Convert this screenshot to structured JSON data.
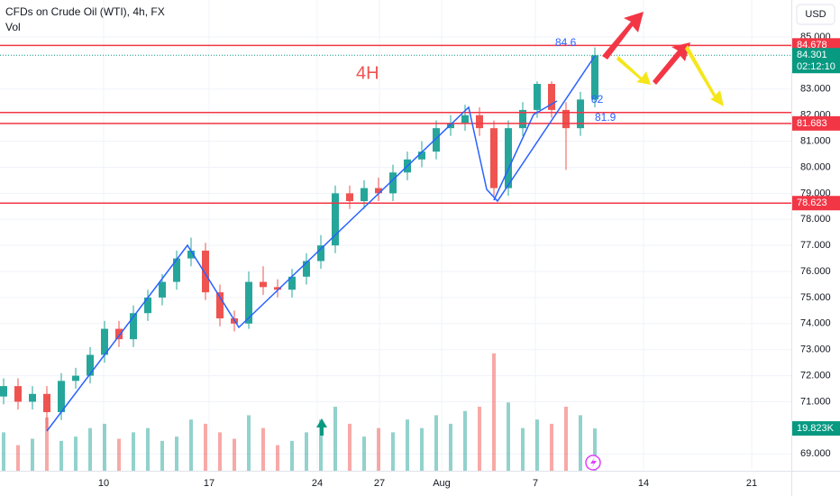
{
  "chart_data": {
    "type": "candlestick",
    "title": "CFDs on Crude Oil (WTI), 4h, FX",
    "volume_title": "Vol",
    "currency": "USD",
    "up_color": "#26a69a",
    "down_color": "#ef5350",
    "xlim": [
      0,
      219.5
    ],
    "xticks": [
      {
        "value": 28.75,
        "label": "10"
      },
      {
        "value": 58,
        "label": "17"
      },
      {
        "value": 88,
        "label": "24"
      },
      {
        "value": 105.25,
        "label": "27"
      },
      {
        "value": 122.5,
        "label": "Aug"
      },
      {
        "value": 148.5,
        "label": "7"
      },
      {
        "value": 178.5,
        "label": "14"
      },
      {
        "value": 208.5,
        "label": "21"
      }
    ],
    "ylim": [
      68.42,
      86.42
    ],
    "yticks": [
      {
        "value": 85,
        "label": "85.000"
      },
      {
        "value": 83,
        "label": "83.000"
      },
      {
        "value": 82,
        "label": "82.000"
      },
      {
        "value": 81,
        "label": "81.000"
      },
      {
        "value": 80,
        "label": "80.000"
      },
      {
        "value": 79,
        "label": "79.000"
      },
      {
        "value": 78,
        "label": "78.000"
      },
      {
        "value": 77,
        "label": "77.000"
      },
      {
        "value": 76,
        "label": "76.000"
      },
      {
        "value": 75,
        "label": "75.000"
      },
      {
        "value": 74,
        "label": "74.000"
      },
      {
        "value": 73,
        "label": "73.000"
      },
      {
        "value": 72,
        "label": "72.000"
      },
      {
        "value": 71,
        "label": "71.000"
      },
      {
        "value": 69,
        "label": "69.000"
      }
    ],
    "x": [
      1,
      5,
      9,
      13,
      17,
      21,
      25,
      29,
      33,
      37,
      41,
      45,
      49,
      53,
      57,
      61,
      65,
      69,
      73,
      77,
      81,
      85,
      89,
      93,
      97,
      101,
      105,
      109,
      113,
      117,
      121,
      125,
      129,
      133,
      137,
      141,
      145,
      149,
      153,
      157,
      161,
      165
    ],
    "open": [
      71.2,
      71.6,
      71.0,
      71.3,
      70.6,
      71.8,
      72.0,
      72.8,
      73.8,
      73.4,
      74.4,
      75.0,
      75.6,
      76.5,
      76.8,
      75.2,
      74.2,
      74.0,
      75.6,
      75.4,
      75.3,
      75.8,
      76.4,
      77.0,
      79.0,
      78.7,
      79.2,
      79.0,
      79.8,
      80.3,
      80.6,
      81.5,
      81.7,
      82.0,
      81.5,
      79.2,
      81.5,
      82.2,
      83.2,
      82.2,
      81.5,
      82.6
    ],
    "high": [
      71.9,
      71.9,
      71.6,
      71.6,
      72.1,
      72.3,
      73.1,
      74.1,
      74.1,
      74.7,
      75.3,
      75.9,
      76.8,
      77.3,
      77.1,
      75.5,
      74.5,
      76.0,
      76.2,
      75.7,
      76.1,
      76.7,
      77.4,
      79.3,
      79.3,
      79.5,
      79.6,
      80.1,
      80.6,
      81.0,
      81.8,
      82.0,
      82.4,
      82.3,
      81.8,
      81.8,
      82.5,
      83.3,
      83.3,
      82.5,
      82.9,
      84.6
    ],
    "low": [
      70.9,
      70.7,
      70.7,
      69.9,
      70.3,
      71.5,
      71.7,
      72.5,
      73.1,
      73.1,
      74.1,
      74.7,
      75.3,
      76.2,
      74.9,
      73.9,
      73.7,
      73.8,
      75.1,
      75.0,
      75.0,
      75.5,
      76.1,
      76.7,
      78.4,
      78.4,
      78.7,
      78.7,
      79.5,
      80.0,
      80.3,
      81.2,
      81.4,
      81.2,
      78.9,
      78.9,
      81.2,
      81.9,
      81.9,
      79.9,
      81.2,
      82.3
    ],
    "close": [
      71.6,
      71.0,
      71.3,
      70.6,
      71.8,
      72.0,
      72.8,
      73.8,
      73.4,
      74.4,
      75.0,
      75.6,
      76.5,
      76.8,
      75.2,
      74.2,
      74.0,
      75.6,
      75.4,
      75.3,
      75.8,
      76.4,
      77.0,
      79.0,
      78.7,
      79.2,
      79.0,
      79.8,
      80.3,
      80.6,
      81.5,
      81.7,
      82.0,
      81.5,
      79.2,
      81.5,
      82.2,
      83.2,
      82.2,
      81.5,
      82.6,
      84.3
    ],
    "volume": {
      "ylim": [
        0,
        60000
      ],
      "values": [
        18000,
        12000,
        15000,
        25000,
        14000,
        16000,
        20000,
        22000,
        15000,
        18000,
        20000,
        14000,
        16000,
        24000,
        22000,
        18000,
        15000,
        26000,
        20000,
        12000,
        14000,
        18000,
        24000,
        30000,
        22000,
        16000,
        20000,
        18000,
        24000,
        20000,
        26000,
        22000,
        28000,
        30000,
        55000,
        32000,
        20000,
        24000,
        22000,
        30000,
        26000,
        19823
      ],
      "last": {
        "value": 19823,
        "label": "19.823K"
      }
    },
    "last_price": {
      "value": 84.301,
      "label": "84.301"
    },
    "countdown": "02:12:10",
    "levels": [
      {
        "value": 84.678,
        "label": "84.678"
      },
      {
        "value": 81.683,
        "label": "81.683"
      },
      {
        "value": 78.623,
        "label": "78.623"
      }
    ],
    "extra_level": 82.1,
    "annotations": {
      "timeframe": "4H",
      "top": "84.6",
      "mid": "82",
      "low": "81.9"
    }
  }
}
